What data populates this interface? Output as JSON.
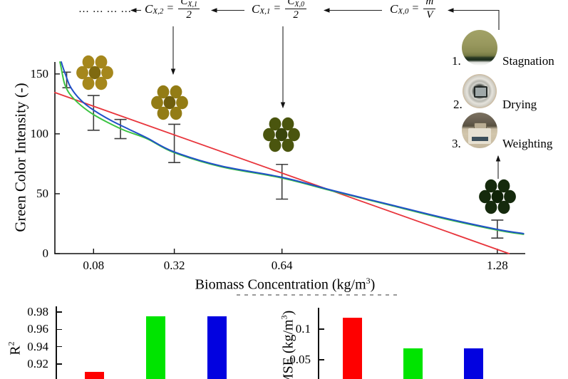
{
  "top_flow": {
    "dots": "… … … …",
    "formulas": [
      {
        "lhs_base": "C",
        "lhs_sub": "X,2",
        "eq": "=",
        "num_base": "C",
        "num_sub": "X,1",
        "den": "2"
      },
      {
        "lhs_base": "C",
        "lhs_sub": "X,1",
        "eq": "=",
        "num_base": "C",
        "num_sub": "X,0",
        "den": "2"
      },
      {
        "lhs_base": "C",
        "lhs_sub": "X,0",
        "eq": "=",
        "num_base": "m",
        "num_sub": "",
        "den": "V"
      }
    ]
  },
  "process_steps": [
    {
      "number": "1.",
      "label": "Stagnation"
    },
    {
      "number": "2.",
      "label": "Drying"
    },
    {
      "number": "3.",
      "label": "Weighting"
    }
  ],
  "colonies": [
    {
      "name": "colony-sample-0.08",
      "fill": "#a5871c",
      "center_fill": "#7f6a10"
    },
    {
      "name": "colony-sample-0.32",
      "fill": "#937c15",
      "center_fill": "#6f5e0d"
    },
    {
      "name": "colony-sample-0.64",
      "fill": "#4a550e",
      "center_fill": "#39450b"
    },
    {
      "name": "colony-sample-1.28",
      "fill": "#152a0d",
      "center_fill": "#0f2308"
    }
  ],
  "chart_data": [
    {
      "id": "main-scatter",
      "type": "scatter",
      "xlabel_pre": "Biomass Concentration (kg/m",
      "xlabel_sup": "3",
      "xlabel_post": ")",
      "ylabel": "Green Color Intensity (-)",
      "xlim": [
        -0.035,
        1.363
      ],
      "ylim": [
        0,
        160
      ],
      "grid": false,
      "xticks": [
        0.08,
        0.32,
        0.64,
        1.28
      ],
      "xtick_labels": [
        "0.08",
        "0.32",
        "0.64",
        "1.28"
      ],
      "yticks": [
        0,
        50,
        100,
        150
      ],
      "ytick_labels": [
        "0",
        "50",
        "100",
        "150"
      ],
      "points": {
        "x": [
          0,
          0.08,
          0.16,
          0.32,
          0.64,
          1.28
        ],
        "y": [
          145,
          117.5,
          104,
          92,
          60,
          20.5
        ],
        "yerr": [
          6.5,
          14.5,
          8,
          16,
          14.5,
          7.5
        ],
        "errorbar_color": "#3d3d3d"
      },
      "fit_lines": [
        {
          "name": "linear-fit-red",
          "color": "#e8353c",
          "x": [
            -0.035,
            1.315
          ],
          "y": [
            134.5,
            0
          ]
        },
        {
          "name": "curve-fit-green",
          "color": "#3cc342",
          "x": [
            -0.02,
            -0.016,
            -0.012,
            -0.006,
            0.005,
            0.022,
            0.045,
            0.077,
            0.119,
            0.172,
            0.24,
            0.318,
            0.458,
            0.64,
            0.797,
            0.96,
            1.115,
            1.28,
            1.358
          ],
          "y": [
            160,
            154.7,
            148.7,
            141.6,
            135.0,
            129.1,
            123.1,
            116.6,
            110.0,
            102.9,
            95.8,
            84.5,
            72.6,
            63.1,
            51.8,
            40.5,
            29.7,
            19.6,
            16.1
          ]
        },
        {
          "name": "curve-fit-blue",
          "color": "#2150c8",
          "x": [
            -0.016,
            -0.01,
            -0.001,
            0.009,
            0.024,
            0.043,
            0.066,
            0.098,
            0.136,
            0.183,
            0.24,
            0.318,
            0.458,
            0.64,
            0.797,
            0.96,
            1.115,
            1.28,
            1.358
          ],
          "y": [
            160,
            154.7,
            147.5,
            140.4,
            133.8,
            127.9,
            122.5,
            116.6,
            110.6,
            104.1,
            96.4,
            85.1,
            73.2,
            63.7,
            52.3,
            41.0,
            30.3,
            20.2,
            16.7
          ]
        }
      ]
    },
    {
      "id": "r2-bars",
      "type": "bar",
      "ylabel_base": "R",
      "ylabel_sup": "2",
      "colors": [
        "#fe0000",
        "#00e400",
        "#0202e0"
      ],
      "values": [
        0.911,
        0.975,
        0.975
      ],
      "yticks": [
        0.92,
        0.94,
        0.96,
        0.98
      ],
      "ytick_labels": [
        "0.92",
        "0.94",
        "0.96",
        "0.98"
      ],
      "ylim": [
        0.903,
        0.987
      ],
      "grid": false
    },
    {
      "id": "mse-bars",
      "type": "bar",
      "ylabel_pre": "MSE (kg/m",
      "ylabel_sup": "3",
      "ylabel_post": ")",
      "colors": [
        "#fe0000",
        "#00e400",
        "#0202e0"
      ],
      "values": [
        0.119,
        0.069,
        0.069
      ],
      "yticks": [
        0.05,
        0.1
      ],
      "ytick_labels": [
        "0.05",
        "0.1"
      ],
      "ylim": [
        0.019,
        0.135
      ],
      "grid": false
    }
  ]
}
